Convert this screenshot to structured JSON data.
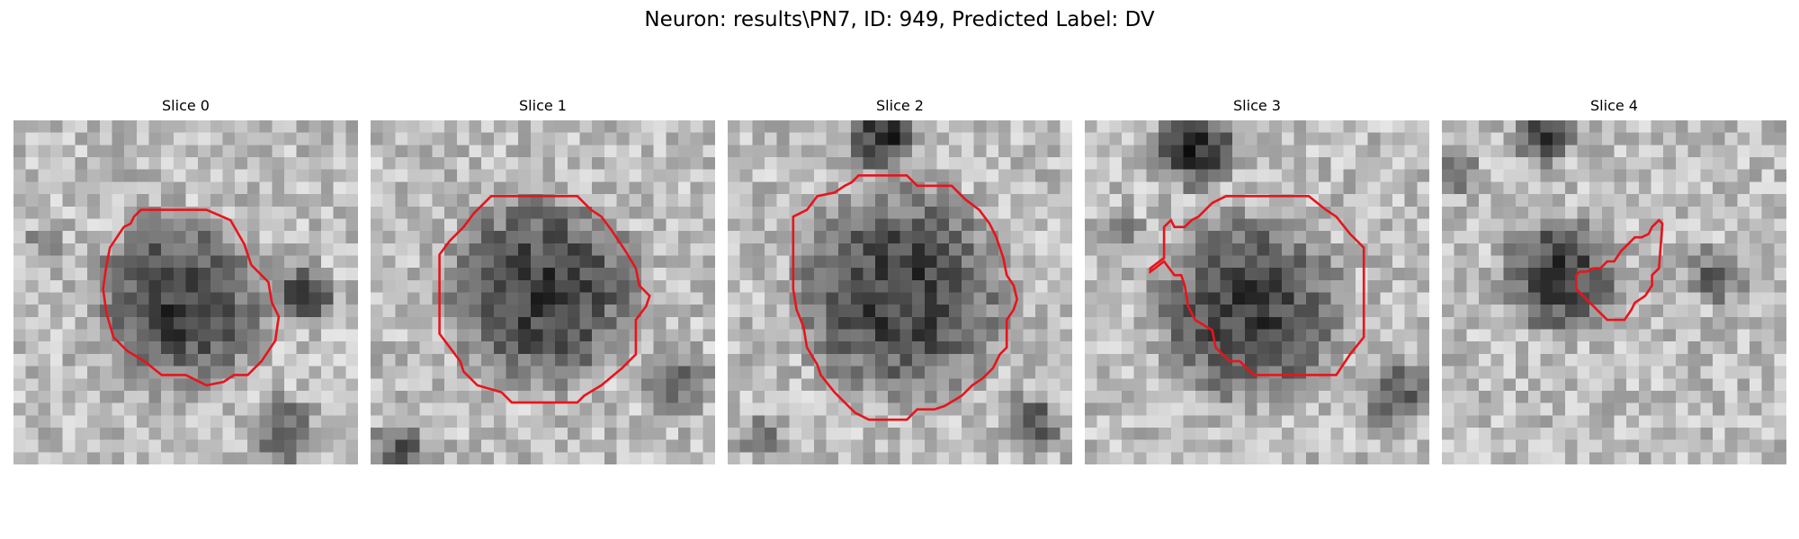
{
  "figure": {
    "title": "Neuron: results\\PN7, ID: 949, Predicted Label: DV"
  },
  "colors": {
    "contour": "#e8141c",
    "background": "#ffffff",
    "colormap": "gray"
  },
  "panels": [
    {
      "title": "Slice 0",
      "image": {
        "description_kind": "grayscale microscopy crop",
        "blob_center": [
          0.48,
          0.53
        ],
        "blob_radius": 0.3,
        "dark_regions": [
          {
            "c": [
              0.1,
              0.35
            ],
            "r": 0.06,
            "s": 0.35
          },
          {
            "c": [
              0.85,
              0.5
            ],
            "r": 0.1,
            "s": 0.45
          },
          {
            "c": [
              0.78,
              0.9
            ],
            "r": 0.12,
            "s": 0.35
          }
        ],
        "seed": 11
      },
      "contour": [
        [
          0.37,
          0.26
        ],
        [
          0.56,
          0.26
        ],
        [
          0.63,
          0.29
        ],
        [
          0.67,
          0.36
        ],
        [
          0.69,
          0.42
        ],
        [
          0.74,
          0.47
        ],
        [
          0.75,
          0.53
        ],
        [
          0.77,
          0.57
        ],
        [
          0.76,
          0.64
        ],
        [
          0.72,
          0.7
        ],
        [
          0.68,
          0.74
        ],
        [
          0.64,
          0.74
        ],
        [
          0.61,
          0.76
        ],
        [
          0.56,
          0.77
        ],
        [
          0.5,
          0.74
        ],
        [
          0.43,
          0.74
        ],
        [
          0.38,
          0.7
        ],
        [
          0.33,
          0.67
        ],
        [
          0.29,
          0.63
        ],
        [
          0.27,
          0.56
        ],
        [
          0.26,
          0.49
        ],
        [
          0.27,
          0.42
        ],
        [
          0.28,
          0.37
        ],
        [
          0.3,
          0.34
        ],
        [
          0.32,
          0.31
        ],
        [
          0.34,
          0.3
        ],
        [
          0.35,
          0.28
        ]
      ]
    },
    {
      "title": "Slice 1",
      "image": {
        "description_kind": "grayscale microscopy crop",
        "blob_center": [
          0.5,
          0.5
        ],
        "blob_radius": 0.33,
        "dark_regions": [
          {
            "c": [
              0.9,
              0.75
            ],
            "r": 0.12,
            "s": 0.3
          },
          {
            "c": [
              0.08,
              0.95
            ],
            "r": 0.1,
            "s": 0.4
          }
        ],
        "seed": 23
      },
      "contour": [
        [
          0.35,
          0.22
        ],
        [
          0.6,
          0.22
        ],
        [
          0.64,
          0.26
        ],
        [
          0.67,
          0.28
        ],
        [
          0.7,
          0.32
        ],
        [
          0.74,
          0.38
        ],
        [
          0.77,
          0.43
        ],
        [
          0.78,
          0.48
        ],
        [
          0.81,
          0.51
        ],
        [
          0.8,
          0.54
        ],
        [
          0.77,
          0.58
        ],
        [
          0.77,
          0.68
        ],
        [
          0.73,
          0.72
        ],
        [
          0.67,
          0.77
        ],
        [
          0.62,
          0.8
        ],
        [
          0.6,
          0.82
        ],
        [
          0.41,
          0.82
        ],
        [
          0.38,
          0.79
        ],
        [
          0.31,
          0.77
        ],
        [
          0.27,
          0.73
        ],
        [
          0.26,
          0.7
        ],
        [
          0.23,
          0.66
        ],
        [
          0.2,
          0.62
        ],
        [
          0.2,
          0.39
        ],
        [
          0.23,
          0.35
        ],
        [
          0.27,
          0.31
        ],
        [
          0.3,
          0.27
        ],
        [
          0.33,
          0.24
        ]
      ]
    },
    {
      "title": "Slice 2",
      "image": {
        "description_kind": "grayscale microscopy crop",
        "blob_center": [
          0.5,
          0.5
        ],
        "blob_radius": 0.36,
        "dark_regions": [
          {
            "c": [
              0.45,
              0.05
            ],
            "r": 0.12,
            "s": 0.55
          },
          {
            "c": [
              0.88,
              0.88
            ],
            "r": 0.1,
            "s": 0.4
          },
          {
            "c": [
              0.1,
              0.92
            ],
            "r": 0.08,
            "s": 0.3
          }
        ],
        "seed": 37
      },
      "contour": [
        [
          0.38,
          0.16
        ],
        [
          0.52,
          0.16
        ],
        [
          0.55,
          0.19
        ],
        [
          0.65,
          0.19
        ],
        [
          0.69,
          0.23
        ],
        [
          0.73,
          0.26
        ],
        [
          0.76,
          0.3
        ],
        [
          0.78,
          0.34
        ],
        [
          0.8,
          0.4
        ],
        [
          0.81,
          0.45
        ],
        [
          0.83,
          0.48
        ],
        [
          0.84,
          0.52
        ],
        [
          0.83,
          0.55
        ],
        [
          0.81,
          0.58
        ],
        [
          0.81,
          0.66
        ],
        [
          0.79,
          0.68
        ],
        [
          0.77,
          0.72
        ],
        [
          0.74,
          0.75
        ],
        [
          0.71,
          0.77
        ],
        [
          0.68,
          0.8
        ],
        [
          0.63,
          0.83
        ],
        [
          0.6,
          0.84
        ],
        [
          0.55,
          0.84
        ],
        [
          0.52,
          0.87
        ],
        [
          0.41,
          0.87
        ],
        [
          0.37,
          0.85
        ],
        [
          0.35,
          0.83
        ],
        [
          0.31,
          0.79
        ],
        [
          0.27,
          0.74
        ],
        [
          0.26,
          0.71
        ],
        [
          0.23,
          0.66
        ],
        [
          0.22,
          0.6
        ],
        [
          0.2,
          0.55
        ],
        [
          0.19,
          0.49
        ],
        [
          0.19,
          0.28
        ],
        [
          0.23,
          0.26
        ],
        [
          0.26,
          0.22
        ],
        [
          0.31,
          0.21
        ],
        [
          0.34,
          0.19
        ],
        [
          0.36,
          0.18
        ]
      ]
    },
    {
      "title": "Slice 3",
      "image": {
        "description_kind": "grayscale microscopy crop",
        "blob_center": [
          0.48,
          0.55
        ],
        "blob_radius": 0.32,
        "dark_regions": [
          {
            "c": [
              0.32,
              0.08
            ],
            "r": 0.14,
            "s": 0.55
          },
          {
            "c": [
              0.9,
              0.8
            ],
            "r": 0.12,
            "s": 0.4
          },
          {
            "c": [
              0.12,
              0.32
            ],
            "r": 0.06,
            "s": 0.3
          }
        ],
        "seed": 51
      },
      "contour": [
        [
          0.41,
          0.22
        ],
        [
          0.65,
          0.22
        ],
        [
          0.7,
          0.26
        ],
        [
          0.73,
          0.28
        ],
        [
          0.77,
          0.33
        ],
        [
          0.81,
          0.37
        ],
        [
          0.81,
          0.63
        ],
        [
          0.77,
          0.68
        ],
        [
          0.73,
          0.74
        ],
        [
          0.7,
          0.74
        ],
        [
          0.49,
          0.74
        ],
        [
          0.45,
          0.7
        ],
        [
          0.42,
          0.7
        ],
        [
          0.38,
          0.66
        ],
        [
          0.37,
          0.61
        ],
        [
          0.32,
          0.58
        ],
        [
          0.3,
          0.54
        ],
        [
          0.29,
          0.48
        ],
        [
          0.28,
          0.45
        ],
        [
          0.26,
          0.45
        ],
        [
          0.23,
          0.41
        ],
        [
          0.19,
          0.44
        ],
        [
          0.19,
          0.43
        ],
        [
          0.23,
          0.4
        ],
        [
          0.23,
          0.31
        ],
        [
          0.25,
          0.29
        ],
        [
          0.26,
          0.31
        ],
        [
          0.29,
          0.31
        ],
        [
          0.31,
          0.29
        ],
        [
          0.33,
          0.28
        ],
        [
          0.35,
          0.26
        ],
        [
          0.37,
          0.24
        ],
        [
          0.39,
          0.23
        ]
      ]
    },
    {
      "title": "Slice 4",
      "image": {
        "description_kind": "grayscale microscopy crop",
        "blob_center": [
          0.34,
          0.45
        ],
        "blob_radius": 0.2,
        "dark_regions": [
          {
            "c": [
              0.3,
              0.05
            ],
            "r": 0.1,
            "s": 0.45
          },
          {
            "c": [
              0.8,
              0.45
            ],
            "r": 0.1,
            "s": 0.35
          },
          {
            "c": [
              0.05,
              0.15
            ],
            "r": 0.07,
            "s": 0.3
          }
        ],
        "seed": 67
      },
      "contour": [
        [
          0.39,
          0.45
        ],
        [
          0.4,
          0.44
        ],
        [
          0.42,
          0.44
        ],
        [
          0.44,
          0.43
        ],
        [
          0.46,
          0.43
        ],
        [
          0.48,
          0.41
        ],
        [
          0.5,
          0.41
        ],
        [
          0.52,
          0.38
        ],
        [
          0.54,
          0.36
        ],
        [
          0.56,
          0.34
        ],
        [
          0.58,
          0.34
        ],
        [
          0.6,
          0.33
        ],
        [
          0.61,
          0.31
        ],
        [
          0.63,
          0.29
        ],
        [
          0.64,
          0.3
        ],
        [
          0.63,
          0.43
        ],
        [
          0.61,
          0.45
        ],
        [
          0.61,
          0.48
        ],
        [
          0.59,
          0.51
        ],
        [
          0.56,
          0.53
        ],
        [
          0.55,
          0.55
        ],
        [
          0.53,
          0.58
        ],
        [
          0.48,
          0.58
        ],
        [
          0.45,
          0.55
        ],
        [
          0.41,
          0.51
        ],
        [
          0.39,
          0.49
        ]
      ]
    }
  ]
}
